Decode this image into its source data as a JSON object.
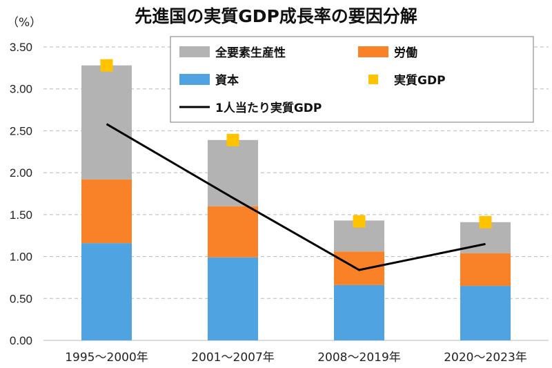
{
  "chart_data": {
    "type": "bar",
    "stacked": true,
    "title": "先進国の実質GDP成長率の要因分解",
    "ylabel": "（%）",
    "xlabel": "",
    "ylim": [
      0,
      3.5
    ],
    "yticks": [
      "0.00",
      "0.50",
      "1.00",
      "1.50",
      "2.00",
      "2.50",
      "3.00",
      "3.50"
    ],
    "grid": true,
    "legend_position": "top-right",
    "categories": [
      "1995～2000年",
      "2001～2007年",
      "2008～2019年",
      "2020～2023年"
    ],
    "series": [
      {
        "name": "資本",
        "kind": "bar",
        "color": "#4fa3e0",
        "values": [
          1.16,
          0.99,
          0.66,
          0.65
        ]
      },
      {
        "name": "労働",
        "kind": "bar",
        "color": "#f98128",
        "values": [
          0.76,
          0.61,
          0.4,
          0.39
        ]
      },
      {
        "name": "全要素生産性",
        "kind": "bar",
        "color": "#b3b3b3",
        "values": [
          1.36,
          0.79,
          0.37,
          0.37
        ]
      },
      {
        "name": "実質GDP",
        "kind": "marker",
        "color": "#ffc300",
        "values": [
          3.28,
          2.39,
          1.42,
          1.41
        ]
      },
      {
        "name": "1人当たり実質GDP",
        "kind": "line",
        "color": "#000000",
        "values": [
          2.58,
          1.7,
          0.84,
          1.15
        ]
      }
    ],
    "legend": [
      {
        "name": "全要素生産性",
        "kind": "bar",
        "color": "#b3b3b3"
      },
      {
        "name": "労働",
        "kind": "bar",
        "color": "#f98128"
      },
      {
        "name": "資本",
        "kind": "bar",
        "color": "#4fa3e0"
      },
      {
        "name": "実質GDP",
        "kind": "marker",
        "color": "#ffc300"
      },
      {
        "name": "1人当たり実質GDP",
        "kind": "line",
        "color": "#000000"
      }
    ]
  }
}
